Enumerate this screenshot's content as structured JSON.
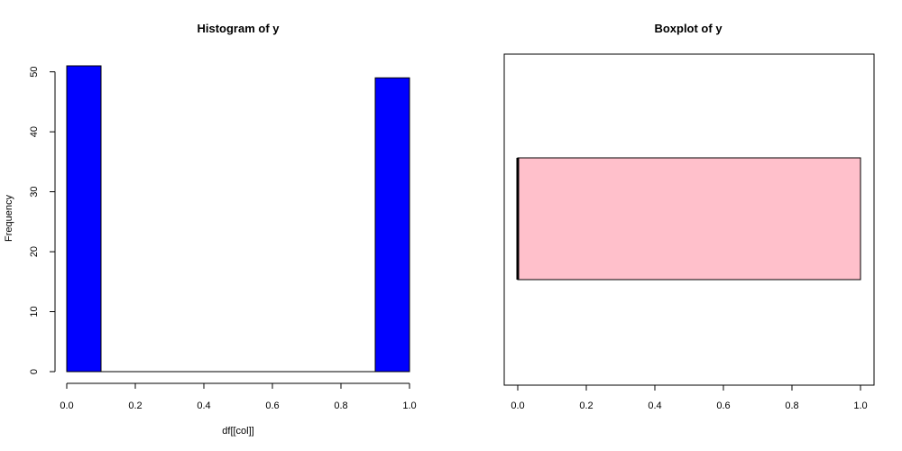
{
  "chart_data": [
    {
      "type": "bar",
      "title": "Histogram of y",
      "xlabel": "df[[col]]",
      "ylabel": "Frequency",
      "bins": [
        {
          "x0": 0.0,
          "x1": 0.1,
          "count": 51
        },
        {
          "x0": 0.1,
          "x1": 0.2,
          "count": 0
        },
        {
          "x0": 0.2,
          "x1": 0.3,
          "count": 0
        },
        {
          "x0": 0.3,
          "x1": 0.4,
          "count": 0
        },
        {
          "x0": 0.4,
          "x1": 0.5,
          "count": 0
        },
        {
          "x0": 0.5,
          "x1": 0.6,
          "count": 0
        },
        {
          "x0": 0.6,
          "x1": 0.7,
          "count": 0
        },
        {
          "x0": 0.7,
          "x1": 0.8,
          "count": 0
        },
        {
          "x0": 0.8,
          "x1": 0.9,
          "count": 0
        },
        {
          "x0": 0.9,
          "x1": 1.0,
          "count": 49
        }
      ],
      "xlim": [
        0,
        1
      ],
      "ylim": [
        0,
        51
      ],
      "xticks": [
        "0.0",
        "0.2",
        "0.4",
        "0.6",
        "0.8",
        "1.0"
      ],
      "yticks": [
        "0",
        "10",
        "20",
        "30",
        "40",
        "50"
      ],
      "bar_color": "#0000ff",
      "grid": false
    },
    {
      "type": "boxplot",
      "title": "Boxplot of y",
      "orientation": "horizontal",
      "stats": {
        "min": 0,
        "q1": 0,
        "median": 0,
        "q3": 1,
        "max": 1
      },
      "xlim": [
        0,
        1
      ],
      "xticks": [
        "0.0",
        "0.2",
        "0.4",
        "0.6",
        "0.8",
        "1.0"
      ],
      "box_color": "#ffc0cb",
      "grid": false
    }
  ]
}
